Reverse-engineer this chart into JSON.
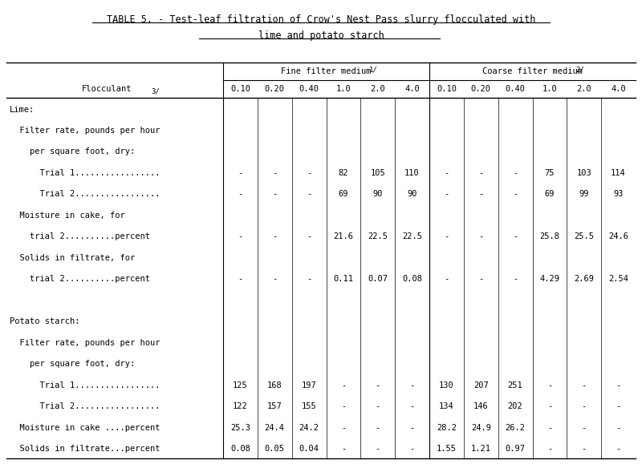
{
  "title_line1": "TABLE 5. - Test-leaf filtration of Crow's Nest Pass slurry flocculated with",
  "title_line2": "lime and potato starch",
  "sub_cols": [
    "0.10",
    "0.20",
    "0.40",
    "1.0",
    "2.0",
    "4.0"
  ],
  "rows": [
    {
      "label": "Lime:",
      "indent": 0,
      "values": [
        "",
        "",
        "",
        "",
        "",
        "",
        "",
        "",
        "",
        "",
        "",
        ""
      ],
      "separator_before": false
    },
    {
      "label": "  Filter rate, pounds per hour",
      "indent": 0,
      "values": [
        "",
        "",
        "",
        "",
        "",
        "",
        "",
        "",
        "",
        "",
        "",
        ""
      ],
      "separator_before": false
    },
    {
      "label": "    per square foot, dry:",
      "indent": 0,
      "values": [
        "",
        "",
        "",
        "",
        "",
        "",
        "",
        "",
        "",
        "",
        "",
        ""
      ],
      "separator_before": false
    },
    {
      "label": "      Trial 1.................",
      "indent": 0,
      "values": [
        "-",
        "-",
        "-",
        "82",
        "105",
        "110",
        "-",
        "-",
        "-",
        "75",
        "103",
        "114"
      ],
      "separator_before": false
    },
    {
      "label": "      Trial 2.................",
      "indent": 0,
      "values": [
        "-",
        "-",
        "-",
        "69",
        "90",
        "90",
        "-",
        "-",
        "-",
        "69",
        "99",
        "93"
      ],
      "separator_before": false
    },
    {
      "label": "  Moisture in cake, for",
      "indent": 0,
      "values": [
        "",
        "",
        "",
        "",
        "",
        "",
        "",
        "",
        "",
        "",
        "",
        ""
      ],
      "separator_before": false
    },
    {
      "label": "    trial 2..........percent",
      "indent": 0,
      "values": [
        "-",
        "-",
        "-",
        "21.6",
        "22.5",
        "22.5",
        "-",
        "-",
        "-",
        "25.8",
        "25.5",
        "24.6"
      ],
      "separator_before": false
    },
    {
      "label": "  Solids in filtrate, for",
      "indent": 0,
      "values": [
        "",
        "",
        "",
        "",
        "",
        "",
        "",
        "",
        "",
        "",
        "",
        ""
      ],
      "separator_before": false
    },
    {
      "label": "    trial 2..........percent",
      "indent": 0,
      "values": [
        "-",
        "-",
        "-",
        "0.11",
        "0.07",
        "0.08",
        "-",
        "-",
        "-",
        "4.29",
        "2.69",
        "2.54"
      ],
      "separator_before": false
    },
    {
      "label": "",
      "indent": 0,
      "values": [
        "",
        "",
        "",
        "",
        "",
        "",
        "",
        "",
        "",
        "",
        "",
        ""
      ],
      "separator_before": false
    },
    {
      "label": "Potato starch:",
      "indent": 0,
      "values": [
        "",
        "",
        "",
        "",
        "",
        "",
        "",
        "",
        "",
        "",
        "",
        ""
      ],
      "separator_before": false
    },
    {
      "label": "  Filter rate, pounds per hour",
      "indent": 0,
      "values": [
        "",
        "",
        "",
        "",
        "",
        "",
        "",
        "",
        "",
        "",
        "",
        ""
      ],
      "separator_before": false
    },
    {
      "label": "    per square foot, dry:",
      "indent": 0,
      "values": [
        "",
        "",
        "",
        "",
        "",
        "",
        "",
        "",
        "",
        "",
        "",
        ""
      ],
      "separator_before": false
    },
    {
      "label": "      Trial 1.................",
      "indent": 0,
      "values": [
        "125",
        "168",
        "197",
        "-",
        "-",
        "-",
        "130",
        "207",
        "251",
        "-",
        "-",
        "-"
      ],
      "separator_before": false
    },
    {
      "label": "      Trial 2.................",
      "indent": 0,
      "values": [
        "122",
        "157",
        "155",
        "-",
        "-",
        "-",
        "134",
        "146",
        "202",
        "-",
        "-",
        "-"
      ],
      "separator_before": false
    },
    {
      "label": "  Moisture in cake ....percent",
      "indent": 0,
      "values": [
        "25.3",
        "24.4",
        "24.2",
        "-",
        "-",
        "-",
        "28.2",
        "24.9",
        "26.2",
        "-",
        "-",
        "-"
      ],
      "separator_before": false
    },
    {
      "label": "  Solids in filtrate...percent",
      "indent": 0,
      "values": [
        "0.08",
        "0.05",
        "0.04",
        "-",
        "-",
        "-",
        "1.55",
        "1.21",
        "0.97",
        "-",
        "-",
        "-"
      ],
      "separator_before": false
    }
  ],
  "bg_color": "#ffffff",
  "text_color": "#000000",
  "font_size": 7.5,
  "title_font_size": 8.5
}
